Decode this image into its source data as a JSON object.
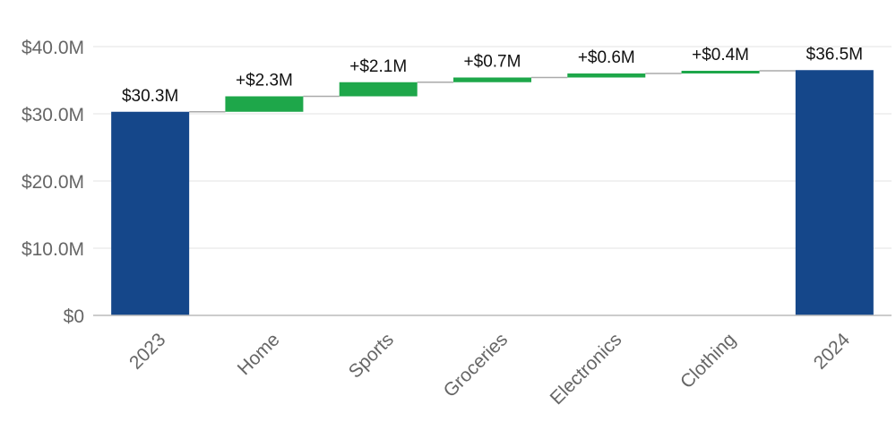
{
  "chart_data": {
    "type": "bar",
    "subtype": "waterfall",
    "title": "",
    "xlabel": "",
    "ylabel": "",
    "ylim": [
      0,
      40
    ],
    "yticks": [
      0,
      10,
      20,
      30,
      40
    ],
    "ytick_labels": [
      "$0",
      "$10.0M",
      "$20.0M",
      "$30.0M",
      "$40.0M"
    ],
    "grid": true,
    "categories": [
      "2023",
      "Home",
      "Sports",
      "Groceries",
      "Electronics",
      "Clothing",
      "2024"
    ],
    "bars": [
      {
        "category": "2023",
        "kind": "total",
        "value": 30.3,
        "label": "$30.3M"
      },
      {
        "category": "Home",
        "kind": "delta",
        "value": 2.3,
        "label": "+$2.3M"
      },
      {
        "category": "Sports",
        "kind": "delta",
        "value": 2.1,
        "label": "+$2.1M"
      },
      {
        "category": "Groceries",
        "kind": "delta",
        "value": 0.7,
        "label": "+$0.7M"
      },
      {
        "category": "Electronics",
        "kind": "delta",
        "value": 0.6,
        "label": "+$0.6M"
      },
      {
        "category": "Clothing",
        "kind": "delta",
        "value": 0.4,
        "label": "+$0.4M"
      },
      {
        "category": "2024",
        "kind": "total",
        "value": 36.5,
        "label": "$36.5M"
      }
    ],
    "colors": {
      "total": "#15478a",
      "increase": "#1ea74a",
      "connector": "#aaaaaa",
      "grid": "#e3e3e3",
      "axis": "#bbbbbb"
    }
  }
}
